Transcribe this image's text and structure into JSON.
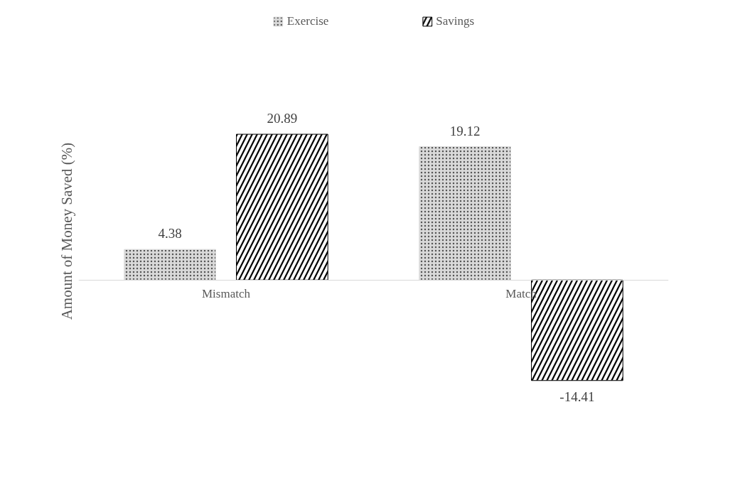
{
  "chart_data": {
    "type": "bar",
    "ylabel": "Amount of Money Saved (%)",
    "categories": [
      "Mismatch",
      "Match"
    ],
    "series": [
      {
        "name": "Exercise",
        "color": "#d9d9d9",
        "values": [
          4.38,
          19.12
        ]
      },
      {
        "name": "Savings",
        "color": "#000000",
        "values": [
          20.89,
          -14.41
        ]
      }
    ],
    "data_labels": true,
    "legend": "top",
    "grid": false
  }
}
